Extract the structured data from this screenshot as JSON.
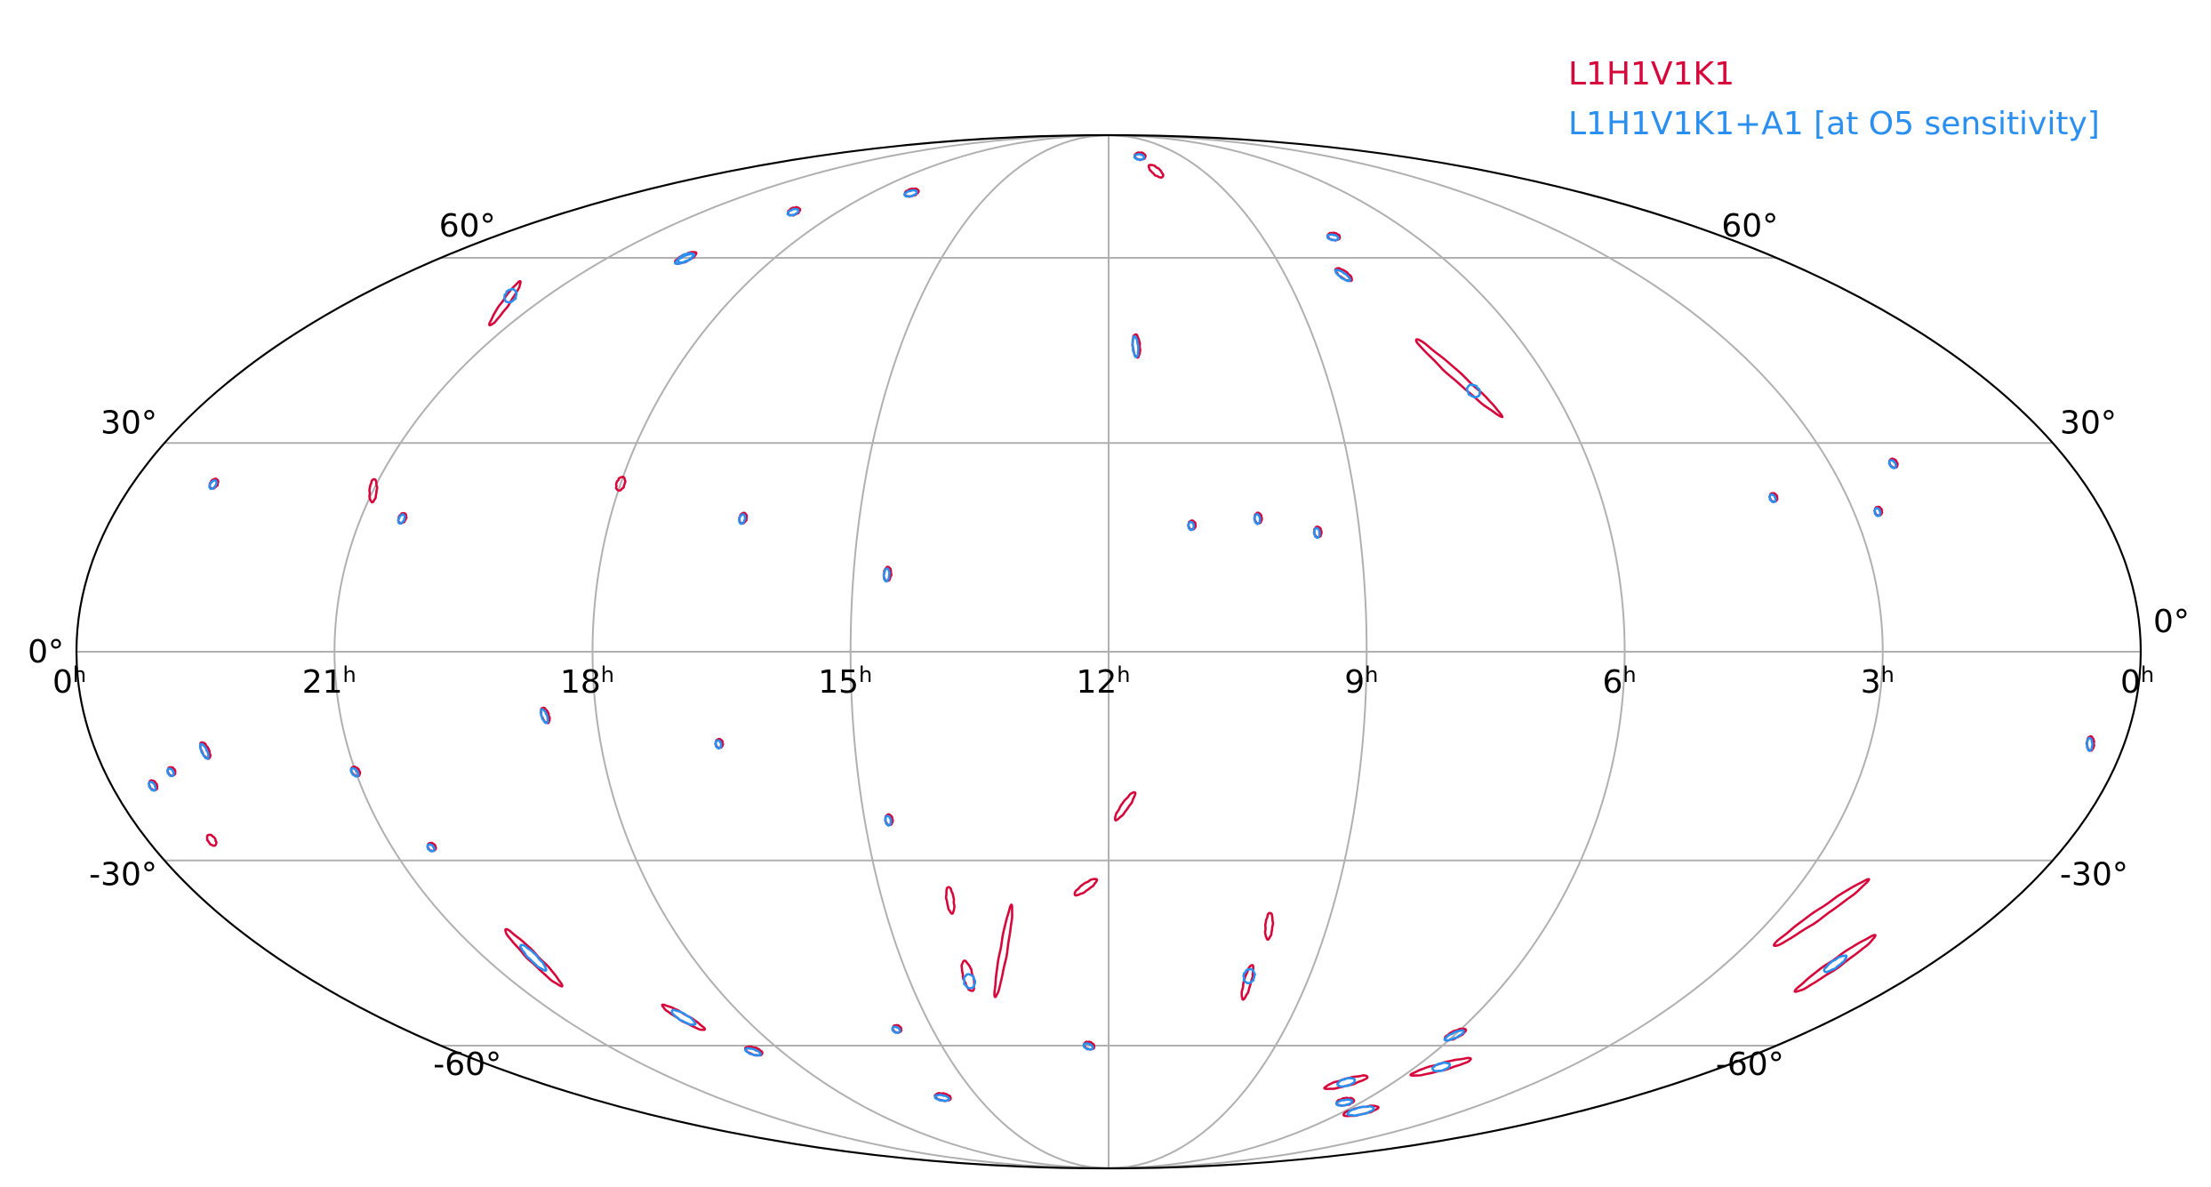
{
  "chart_data": {
    "type": "sky-localization-map",
    "projection": "mollweide",
    "title": "",
    "grid": true,
    "legend_position": "top-right",
    "colors": {
      "red": "#d6083b",
      "blue": "#2b8ff0",
      "grid": "#b0b0b0",
      "outline": "#000000"
    },
    "series": [
      {
        "name": "L1H1V1K1",
        "color": "#d6083b"
      },
      {
        "name": "L1H1V1K1+A1 [at O5 sensitivity]",
        "color": "#2b8ff0"
      }
    ],
    "ra_ticks": [
      {
        "label": "0",
        "ra_h": 24
      },
      {
        "label": "21",
        "ra_h": 21
      },
      {
        "label": "18",
        "ra_h": 18
      },
      {
        "label": "15",
        "ra_h": 15
      },
      {
        "label": "12",
        "ra_h": 12
      },
      {
        "label": "9",
        "ra_h": 9
      },
      {
        "label": "6",
        "ra_h": 6
      },
      {
        "label": "3",
        "ra_h": 3
      },
      {
        "label": "0",
        "ra_h": 0
      }
    ],
    "ra_unit": "h",
    "dec_ticks": [
      {
        "label": "60°",
        "dec": 60
      },
      {
        "label": "30°",
        "dec": 30
      },
      {
        "label": "0°",
        "dec": 0
      },
      {
        "label": "-30°",
        "dec": -30
      },
      {
        "label": "-60°",
        "dec": -60
      }
    ],
    "regions": [
      {
        "ra_h": 17.0,
        "dec": 73,
        "len": 1.6,
        "wid": 0.4,
        "ang": -15,
        "series": "both"
      },
      {
        "ra_h": 19.0,
        "dec": 69,
        "len": 1.4,
        "wid": 0.4,
        "ang": -20,
        "series": "both"
      },
      {
        "ra_h": 19.6,
        "dec": 60,
        "len": 2.6,
        "wid": 0.4,
        "ang": -25,
        "series": "both",
        "blue_len": 1.8
      },
      {
        "ra_h": 21.5,
        "dec": 52,
        "len": 6.0,
        "wid": 0.8,
        "ang": -55,
        "series": "red",
        "blue_blob": true
      },
      {
        "ra_h": 23.0,
        "dec": 24,
        "len": 1.2,
        "wid": 0.35,
        "ang": -55,
        "series": "both"
      },
      {
        "ra_h": 21.0,
        "dec": 23,
        "len": 2.6,
        "wid": 0.6,
        "ang": -85,
        "series": "red"
      },
      {
        "ra_h": 20.5,
        "dec": 19,
        "len": 1.2,
        "wid": 0.35,
        "ang": -65,
        "series": "both"
      },
      {
        "ra_h": 18.0,
        "dec": 24,
        "len": 1.6,
        "wid": 0.9,
        "ang": -70,
        "series": "red"
      },
      {
        "ra_h": 16.4,
        "dec": 19,
        "len": 1.2,
        "wid": 0.5,
        "ang": -75,
        "series": "both"
      },
      {
        "ra_h": 14.6,
        "dec": 11,
        "len": 1.6,
        "wid": 0.45,
        "ang": -85,
        "series": "both"
      },
      {
        "ra_h": 10.7,
        "dec": 82,
        "len": 1.2,
        "wid": 0.4,
        "ang": 5,
        "series": "both"
      },
      {
        "ra_h": 10.5,
        "dec": 78,
        "len": 2.0,
        "wid": 0.55,
        "ang": 40,
        "series": "red"
      },
      {
        "ra_h": 7.6,
        "dec": 64,
        "len": 1.4,
        "wid": 0.45,
        "ang": 10,
        "series": "both"
      },
      {
        "ra_h": 8.0,
        "dec": 57,
        "len": 2.2,
        "wid": 0.6,
        "ang": 35,
        "series": "both"
      },
      {
        "ra_h": 7.2,
        "dec": 40,
        "len": 13.0,
        "wid": 1.0,
        "ang": 42,
        "series": "red",
        "blue_blob": true
      },
      {
        "ra_h": 11.6,
        "dec": 45,
        "len": 2.6,
        "wid": 0.8,
        "ang": 85,
        "series": "both"
      },
      {
        "ra_h": 11.0,
        "dec": 18,
        "len": 1.0,
        "wid": 0.4,
        "ang": 85,
        "series": "both"
      },
      {
        "ra_h": 10.2,
        "dec": 19,
        "len": 1.2,
        "wid": 0.45,
        "ang": 85,
        "series": "both"
      },
      {
        "ra_h": 9.5,
        "dec": 17,
        "len": 1.2,
        "wid": 0.35,
        "ang": 85,
        "series": "both"
      },
      {
        "ra_h": 3.9,
        "dec": 22,
        "len": 1.0,
        "wid": 0.35,
        "ang": 65,
        "series": "both"
      },
      {
        "ra_h": 2.7,
        "dec": 20,
        "len": 1.0,
        "wid": 0.35,
        "ang": 75,
        "series": "both"
      },
      {
        "ra_h": 2.2,
        "dec": 27,
        "len": 1.1,
        "wid": 0.35,
        "ang": 55,
        "series": "both"
      },
      {
        "ra_h": 0.4,
        "dec": -13,
        "len": 1.6,
        "wid": 0.4,
        "ang": 90,
        "series": "both"
      },
      {
        "ra_h": 23.5,
        "dec": -19,
        "len": 1.2,
        "wid": 0.35,
        "ang": 60,
        "series": "both"
      },
      {
        "ra_h": 23.2,
        "dec": -17,
        "len": 1.0,
        "wid": 0.3,
        "ang": 60,
        "series": "both"
      },
      {
        "ra_h": 22.7,
        "dec": -14,
        "len": 2.0,
        "wid": 0.4,
        "ang": 65,
        "series": "both"
      },
      {
        "ra_h": 21.0,
        "dec": -17,
        "len": 1.2,
        "wid": 0.35,
        "ang": 50,
        "series": "both"
      },
      {
        "ra_h": 18.6,
        "dec": -9,
        "len": 1.8,
        "wid": 0.4,
        "ang": 70,
        "series": "both"
      },
      {
        "ra_h": 16.6,
        "dec": -13,
        "len": 1.0,
        "wid": 0.35,
        "ang": 80,
        "series": "both"
      },
      {
        "ra_h": 14.7,
        "dec": -24,
        "len": 1.2,
        "wid": 0.4,
        "ang": 80,
        "series": "both"
      },
      {
        "ra_h": 20.5,
        "dec": -28,
        "len": 1.0,
        "wid": 0.3,
        "ang": 45,
        "series": "both"
      },
      {
        "ra_h": 11.8,
        "dec": -22,
        "len": 3.8,
        "wid": 0.6,
        "ang": -55,
        "series": "red"
      },
      {
        "ra_h": 12.3,
        "dec": -34,
        "len": 3.0,
        "wid": 0.5,
        "ang": -35,
        "series": "red"
      },
      {
        "ra_h": 14.1,
        "dec": -36,
        "len": 3.0,
        "wid": 0.45,
        "ang": 82,
        "series": "red"
      },
      {
        "ra_h": 13.5,
        "dec": -44,
        "len": 10.5,
        "wid": 0.7,
        "ang": -80,
        "series": "red"
      },
      {
        "ra_h": 14.1,
        "dec": -48,
        "len": 3.5,
        "wid": 1.1,
        "ang": 75,
        "series": "red",
        "blue_blob": true
      },
      {
        "ra_h": 9.8,
        "dec": -40,
        "len": 3.0,
        "wid": 0.45,
        "ang": -85,
        "series": "red"
      },
      {
        "ra_h": 9.9,
        "dec": -49,
        "len": 4.0,
        "wid": 0.8,
        "ang": -75,
        "series": "red",
        "blue_blob": true
      },
      {
        "ra_h": 12.35,
        "dec": -60,
        "len": 1.2,
        "wid": 0.6,
        "ang": 20,
        "series": "both"
      },
      {
        "ra_h": 15.6,
        "dec": -57,
        "len": 1.0,
        "wid": 0.35,
        "ang": 25,
        "series": "both"
      },
      {
        "ra_h": 20.3,
        "dec": -45,
        "len": 9.0,
        "wid": 1.0,
        "ang": 45,
        "series": "red",
        "blue_len": 4.0
      },
      {
        "ra_h": 19.0,
        "dec": -55,
        "len": 5.5,
        "wid": 0.8,
        "ang": 30,
        "series": "red",
        "blue_len": 3.0
      },
      {
        "ra_h": 18.5,
        "dec": -61,
        "len": 2.0,
        "wid": 0.4,
        "ang": 18,
        "series": "both"
      },
      {
        "ra_h": 15.8,
        "dec": -70,
        "len": 1.8,
        "wid": 0.35,
        "ang": 10,
        "series": "both"
      },
      {
        "ra_h": 23.2,
        "dec": -27,
        "len": 1.4,
        "wid": 0.4,
        "ang": 55,
        "series": "red"
      },
      {
        "ra_h": 6.0,
        "dec": -58,
        "len": 2.6,
        "wid": 0.55,
        "ang": -25,
        "series": "both"
      },
      {
        "ra_h": 2.4,
        "dec": -38,
        "len": 13.0,
        "wid": 1.0,
        "ang": -35,
        "series": "red"
      },
      {
        "ra_h": 1.4,
        "dec": -46,
        "len": 11.0,
        "wid": 1.0,
        "ang": -35,
        "series": "red",
        "blue_len": 3.0
      },
      {
        "ra_h": 5.5,
        "dec": -64,
        "len": 7.0,
        "wid": 0.8,
        "ang": -15,
        "series": "red",
        "blue_len": 2.0
      },
      {
        "ra_h": 7.0,
        "dec": -67,
        "len": 5.0,
        "wid": 0.6,
        "ang": -15,
        "series": "red",
        "blue_len": 2.0
      },
      {
        "ra_h": 6.4,
        "dec": -71,
        "len": 2.0,
        "wid": 0.35,
        "ang": -10,
        "series": "both"
      },
      {
        "ra_h": 5.6,
        "dec": -73,
        "len": 4.0,
        "wid": 0.5,
        "ang": -12,
        "series": "red",
        "blue_len": 3.0
      }
    ]
  }
}
